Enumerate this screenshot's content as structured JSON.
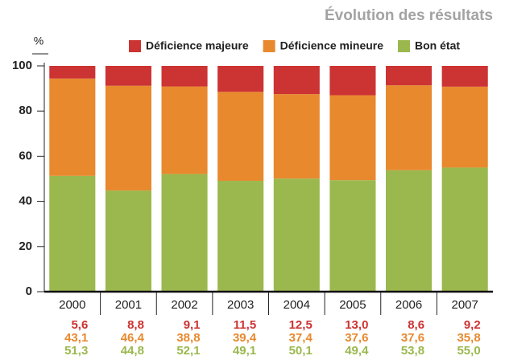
{
  "chart_data": {
    "type": "stacked_bar",
    "title": "Évolution des résultats",
    "y_label": "%",
    "categories": [
      "2000",
      "2001",
      "2002",
      "2003",
      "2004",
      "2005",
      "2006",
      "2007"
    ],
    "series": [
      {
        "name": "Déficience majeure",
        "color": "#cc3333",
        "values": [
          5.6,
          8.8,
          9.1,
          11.5,
          12.5,
          13.0,
          8.6,
          9.2
        ],
        "value_labels": [
          "5,6",
          "8,8",
          "9,1",
          "11,5",
          "12,5",
          "13,0",
          "8,6",
          "9,2"
        ]
      },
      {
        "name": "Déficience mineure",
        "color": "#e8892e",
        "values": [
          43.1,
          46.4,
          38.8,
          39.4,
          37.4,
          37.6,
          37.6,
          35.8
        ],
        "value_labels": [
          "43,1",
          "46,4",
          "38,8",
          "39,4",
          "37,4",
          "37,6",
          "37,6",
          "35,8"
        ]
      },
      {
        "name": "Bon état",
        "color": "#9bb84e",
        "values": [
          51.3,
          44.8,
          52.1,
          49.1,
          50.1,
          49.4,
          53.8,
          55.0
        ],
        "value_labels": [
          "51,3",
          "44,8",
          "52,1",
          "49,1",
          "50,1",
          "49,4",
          "53,8",
          "55,0"
        ]
      }
    ],
    "ylim": [
      0,
      100
    ],
    "yticks": [
      0,
      20,
      40,
      60,
      80,
      100
    ]
  }
}
